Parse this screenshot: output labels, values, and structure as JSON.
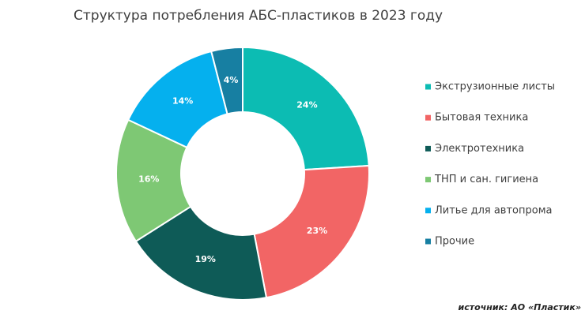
{
  "chart_data": {
    "type": "donut",
    "title": "Структура потребления АБС-пластиков в 2023 году",
    "categories": [
      "Экструзионные листы",
      "Бытовая техника",
      "Электротехника",
      "ТНП и сан. гигиена",
      "Литье для автопрома",
      "Прочие"
    ],
    "values": [
      24,
      23,
      19,
      16,
      14,
      4
    ],
    "value_labels": [
      "24%",
      "23%",
      "19%",
      "16%",
      "14%",
      "4%"
    ],
    "colors": [
      "#0cbcb3",
      "#f26565",
      "#0e5b57",
      "#7ec874",
      "#05b0ee",
      "#177fa2"
    ],
    "legend": "right",
    "source": "источник: АО «Пластик»"
  }
}
